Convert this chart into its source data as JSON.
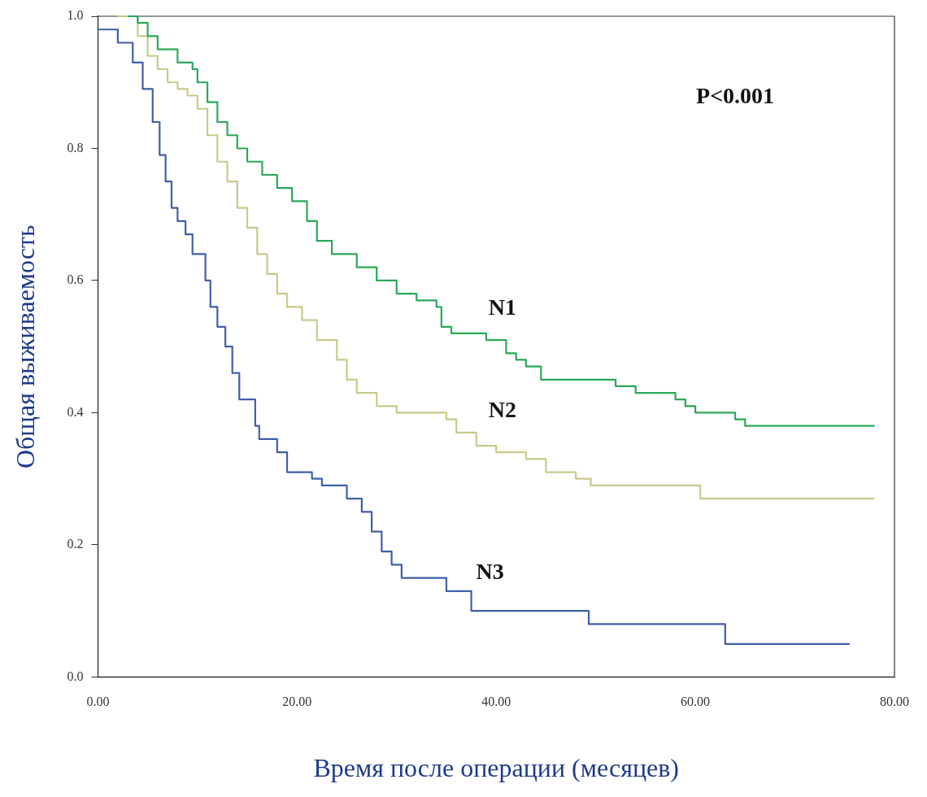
{
  "chart_data": {
    "type": "step",
    "xlabel": "Время после операции (месяцев)",
    "ylabel": "Общая выживаемость",
    "xlim": [
      0,
      80
    ],
    "xticks": [
      {
        "value": 0,
        "label": "0.00"
      },
      {
        "value": 20,
        "label": "20.00"
      },
      {
        "value": 40,
        "label": "40.00"
      },
      {
        "value": 60,
        "label": "60.00"
      },
      {
        "value": 80,
        "label": "80.00"
      }
    ],
    "ylim": [
      0,
      1
    ],
    "yticks": [
      {
        "value": 0,
        "label": "0.0"
      },
      {
        "value": 0.2,
        "label": "0.2"
      },
      {
        "value": 0.4,
        "label": "0.4"
      },
      {
        "value": 0.6,
        "label": "0.6"
      },
      {
        "value": 0.8,
        "label": "0.8"
      },
      {
        "value": 1,
        "label": "1.0"
      }
    ],
    "grid": false,
    "legend": false,
    "annotations": [
      "P<0.001"
    ],
    "series": [
      {
        "name": "N1",
        "color": "#2aa85a",
        "x": [
          3,
          4,
          5,
          6,
          8,
          9.5,
          10,
          11,
          12,
          13,
          14,
          15,
          16.5,
          18,
          19.5,
          21,
          22,
          23.5,
          26,
          28,
          30,
          32,
          34,
          34.5,
          35.5,
          39,
          41,
          42,
          43,
          44.5,
          49,
          52,
          54,
          58,
          59,
          60,
          64,
          65,
          78
        ],
        "values": [
          1.0,
          0.99,
          0.97,
          0.95,
          0.93,
          0.92,
          0.9,
          0.87,
          0.84,
          0.82,
          0.8,
          0.78,
          0.76,
          0.74,
          0.72,
          0.69,
          0.66,
          0.64,
          0.62,
          0.6,
          0.58,
          0.57,
          0.56,
          0.53,
          0.52,
          0.51,
          0.49,
          0.48,
          0.47,
          0.45,
          0.45,
          0.44,
          0.43,
          0.42,
          0.41,
          0.4,
          0.39,
          0.38,
          0.38
        ]
      },
      {
        "name": "N2",
        "color": "#c9c98a",
        "x": [
          2,
          4,
          5,
          6,
          7,
          8,
          9,
          10,
          11,
          12,
          13,
          14,
          15,
          16,
          17,
          18,
          19,
          20.5,
          22,
          24,
          25,
          26,
          28,
          30,
          35,
          36,
          38,
          40,
          43,
          45,
          48,
          49.5,
          60.5,
          78
        ],
        "values": [
          1.0,
          0.97,
          0.94,
          0.92,
          0.9,
          0.89,
          0.88,
          0.86,
          0.82,
          0.78,
          0.75,
          0.71,
          0.68,
          0.64,
          0.61,
          0.58,
          0.56,
          0.54,
          0.51,
          0.48,
          0.45,
          0.43,
          0.41,
          0.4,
          0.39,
          0.37,
          0.35,
          0.34,
          0.33,
          0.31,
          0.3,
          0.29,
          0.27,
          0.27
        ]
      },
      {
        "name": "N3",
        "color": "#3f5fa8",
        "x": [
          0,
          2,
          3.5,
          4.5,
          5.5,
          6.2,
          6.8,
          7.4,
          8,
          8.8,
          9.5,
          10.8,
          11.3,
          12,
          12.8,
          13.5,
          14.2,
          15.8,
          16.2,
          18,
          19,
          21.5,
          22.5,
          25,
          26.5,
          27.5,
          28.5,
          29.5,
          30.5,
          35,
          37.5,
          49.3,
          63,
          75.5
        ],
        "values": [
          0.98,
          0.96,
          0.93,
          0.89,
          0.84,
          0.79,
          0.75,
          0.71,
          0.69,
          0.67,
          0.64,
          0.6,
          0.56,
          0.53,
          0.5,
          0.46,
          0.42,
          0.38,
          0.36,
          0.34,
          0.31,
          0.3,
          0.29,
          0.27,
          0.25,
          0.22,
          0.19,
          0.17,
          0.15,
          0.13,
          0.1,
          0.08,
          0.05,
          0.05
        ]
      }
    ]
  }
}
